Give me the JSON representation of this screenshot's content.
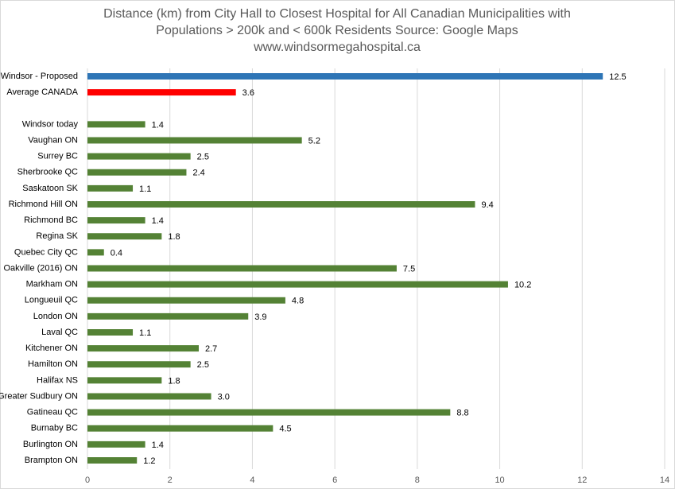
{
  "chart_data": {
    "type": "hbar",
    "title": [
      "Distance (km) from City Hall to Closest Hospital for All Canadian Municipalities with",
      "Populations > 200k and < 600k Residents    Source:  Google Maps",
      "www.windsormegahospital.ca"
    ],
    "categories": [
      "Windsor - Proposed",
      "Average CANADA",
      null,
      "Windsor today",
      "Vaughan ON",
      "Surrey BC",
      "Sherbrooke QC",
      "Saskatoon SK",
      "Richmond Hill ON",
      "Richmond BC",
      "Regina SK",
      "Quebec City QC",
      "Oakville (2016) ON",
      "Markham ON",
      "Longueuil QC",
      "London ON",
      "Laval QC",
      "Kitchener ON",
      "Hamilton ON",
      "Halifax NS",
      "Greater Sudbury ON",
      "Gatineau QC",
      "Burnaby BC",
      "Burlington ON",
      "Brampton ON"
    ],
    "values": [
      12.5,
      3.6,
      null,
      1.4,
      5.2,
      2.5,
      2.4,
      1.1,
      9.4,
      1.4,
      1.8,
      0.4,
      7.5,
      10.2,
      4.8,
      3.9,
      1.1,
      2.7,
      2.5,
      1.8,
      3.0,
      8.8,
      4.5,
      1.4,
      1.2
    ],
    "value_labels": [
      "12.5",
      "3.6",
      null,
      "1.4",
      "5.2",
      "2.5",
      "2.4",
      "1.1",
      "9.4",
      "1.4",
      "1.8",
      "0.4",
      "7.5",
      "10.2",
      "4.8",
      "3.9",
      "1.1",
      "2.7",
      "2.5",
      "1.8",
      "3.0",
      "8.8",
      "4.5",
      "1.4",
      "1.2"
    ],
    "colors": [
      "#2e75b6",
      "#ff0000",
      null,
      "#548235",
      "#548235",
      "#548235",
      "#548235",
      "#548235",
      "#548235",
      "#548235",
      "#548235",
      "#548235",
      "#548235",
      "#548235",
      "#548235",
      "#548235",
      "#548235",
      "#548235",
      "#548235",
      "#548235",
      "#548235",
      "#548235",
      "#548235",
      "#548235",
      "#548235"
    ],
    "xlim": [
      0,
      14
    ],
    "xticks": [
      0,
      2,
      4,
      6,
      8,
      10,
      12,
      14
    ],
    "grid": true
  }
}
